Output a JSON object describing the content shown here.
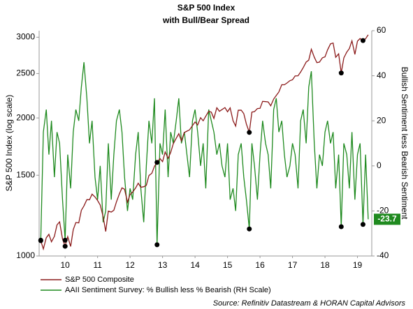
{
  "chart_data": {
    "type": "line",
    "title": "S&P 500 Index",
    "subtitle": "with Bull/Bear Spread",
    "y_label": "S&P 500 Index (log scale)",
    "y2_label": "Bullish Sentiment less Bearish Sentiment",
    "source": "Source: Refinitiv Datastream & HORAN Capital Advisors",
    "ylog": true,
    "xlim": [
      2009.7,
      2019.94
    ],
    "ylim": [
      1000,
      3100
    ],
    "y2lim": [
      -40,
      60
    ],
    "yticks": [
      1000,
      1500,
      2000,
      2500,
      3000
    ],
    "y2ticks": [
      -40,
      -20,
      0,
      20,
      40,
      60
    ],
    "xticks": [
      {
        "value": 2010.5,
        "label": "10"
      },
      {
        "value": 2011.5,
        "label": "11"
      },
      {
        "value": 2012.5,
        "label": "12"
      },
      {
        "value": 2013.5,
        "label": "13"
      },
      {
        "value": 2014.5,
        "label": "14"
      },
      {
        "value": 2015.5,
        "label": "15"
      },
      {
        "value": 2016.5,
        "label": "16"
      },
      {
        "value": 2017.5,
        "label": "17"
      },
      {
        "value": 2018.5,
        "label": "18"
      },
      {
        "value": 2019.5,
        "label": "19"
      }
    ],
    "x": [
      2009.75,
      2009.83,
      2009.92,
      2010.0,
      2010.08,
      2010.17,
      2010.25,
      2010.33,
      2010.42,
      2010.5,
      2010.58,
      2010.67,
      2010.75,
      2010.83,
      2010.92,
      2011.0,
      2011.08,
      2011.17,
      2011.25,
      2011.33,
      2011.42,
      2011.5,
      2011.58,
      2011.67,
      2011.75,
      2011.83,
      2011.92,
      2012.0,
      2012.08,
      2012.17,
      2012.25,
      2012.33,
      2012.42,
      2012.5,
      2012.58,
      2012.67,
      2012.75,
      2012.83,
      2012.92,
      2013.0,
      2013.08,
      2013.17,
      2013.25,
      2013.33,
      2013.42,
      2013.5,
      2013.58,
      2013.67,
      2013.75,
      2013.83,
      2013.92,
      2014.0,
      2014.08,
      2014.17,
      2014.25,
      2014.33,
      2014.42,
      2014.5,
      2014.58,
      2014.67,
      2014.75,
      2014.83,
      2014.92,
      2015.0,
      2015.08,
      2015.17,
      2015.25,
      2015.33,
      2015.42,
      2015.5,
      2015.58,
      2015.67,
      2015.75,
      2015.83,
      2015.92,
      2016.0,
      2016.08,
      2016.17,
      2016.25,
      2016.33,
      2016.42,
      2016.5,
      2016.58,
      2016.67,
      2016.75,
      2016.83,
      2016.92,
      2017.0,
      2017.08,
      2017.17,
      2017.25,
      2017.33,
      2017.42,
      2017.5,
      2017.58,
      2017.67,
      2017.75,
      2017.83,
      2017.92,
      2018.0,
      2018.08,
      2018.17,
      2018.25,
      2018.33,
      2018.42,
      2018.5,
      2018.58,
      2018.67,
      2018.75,
      2018.83,
      2018.92,
      2019.0,
      2019.08,
      2019.17,
      2019.25,
      2019.33,
      2019.42,
      2019.5,
      2019.58,
      2019.67,
      2019.75,
      2019.83
    ],
    "series": [
      {
        "name": "S&P 500 Composite",
        "color": "#8b1a1a",
        "axis": "y",
        "values": [
          1080,
          1036,
          1096,
          1115,
          1074,
          1104,
          1169,
          1187,
          1089,
          1050,
          1102,
          1049,
          1141,
          1183,
          1181,
          1258,
          1286,
          1327,
          1326,
          1364,
          1345,
          1321,
          1292,
          1219,
          1131,
          1253,
          1247,
          1258,
          1312,
          1366,
          1408,
          1398,
          1310,
          1362,
          1379,
          1407,
          1441,
          1412,
          1416,
          1426,
          1498,
          1515,
          1569,
          1600,
          1631,
          1606,
          1686,
          1633,
          1682,
          1757,
          1806,
          1848,
          1783,
          1859,
          1872,
          1884,
          1924,
          1960,
          1931,
          2003,
          1972,
          2018,
          2068,
          2059,
          1995,
          2105,
          2068,
          2086,
          2107,
          2063,
          2104,
          1972,
          1920,
          2079,
          2080,
          2044,
          1940,
          1860,
          2060,
          2065,
          2097,
          2099,
          2174,
          2171,
          2168,
          2126,
          2199,
          2239,
          2279,
          2364,
          2363,
          2384,
          2412,
          2423,
          2470,
          2472,
          2519,
          2575,
          2648,
          2674,
          2824,
          2714,
          2641,
          2648,
          2705,
          2718,
          2816,
          2902,
          2914,
          2712,
          2760,
          2507,
          2704,
          2784,
          2834,
          2946,
          2752,
          2942,
          2980,
          2950,
          2977,
          3037
        ]
      },
      {
        "name": "AAII Sentiment Survey: % Bullish less % Bearish (RH Scale)",
        "color": "#1f8a1f",
        "axis": "y2",
        "values": [
          -33,
          15,
          25,
          5,
          20,
          -5,
          15,
          10,
          -15,
          -33,
          5,
          -10,
          15,
          25,
          20,
          35,
          46,
          30,
          10,
          20,
          -5,
          -15,
          0,
          -25,
          -20,
          10,
          -15,
          5,
          20,
          25,
          15,
          -5,
          -20,
          -10,
          -15,
          5,
          15,
          -10,
          -25,
          0,
          20,
          10,
          30,
          -35,
          10,
          5,
          25,
          -5,
          15,
          10,
          20,
          30,
          10,
          15,
          5,
          -5,
          20,
          25,
          15,
          0,
          10,
          -10,
          25,
          20,
          15,
          5,
          10,
          0,
          -5,
          10,
          -15,
          -10,
          -20,
          5,
          10,
          -5,
          -15,
          -28,
          10,
          0,
          -15,
          5,
          20,
          10,
          5,
          -10,
          25,
          30,
          15,
          20,
          5,
          -5,
          0,
          10,
          5,
          -10,
          20,
          25,
          10,
          35,
          42,
          10,
          -10,
          5,
          0,
          15,
          20,
          10,
          15,
          -10,
          5,
          -27,
          10,
          5,
          -10,
          15,
          -15,
          5,
          10,
          -26,
          5,
          -23.7
        ]
      }
    ],
    "markers": [
      {
        "axis": "y",
        "color": "#000000",
        "x": [
          2009.75,
          2010.5,
          2013.33,
          2016.17,
          2019.0,
          2019.67
        ],
        "values": [
          1080,
          1050,
          1600,
          1860,
          2507,
          2950
        ]
      },
      {
        "axis": "y2",
        "color": "#000000",
        "x": [
          2009.75,
          2010.5,
          2013.33,
          2016.17,
          2019.0,
          2019.67
        ],
        "values": [
          -33,
          -33,
          -35,
          -28,
          -27,
          -26
        ]
      }
    ]
  }
}
